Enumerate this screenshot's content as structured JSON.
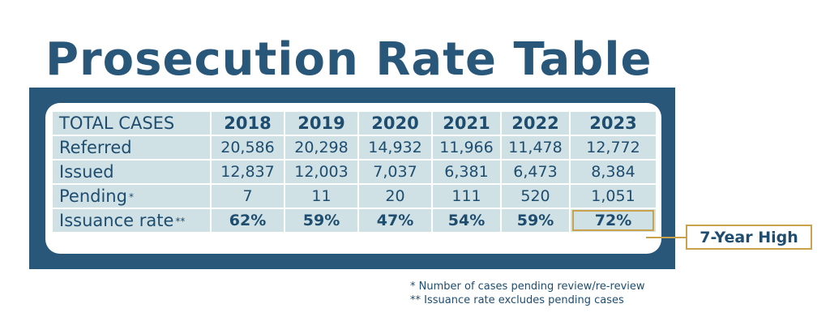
{
  "chart_data": {
    "type": "table",
    "title": "Prosecution Rate Table",
    "columns": [
      "TOTAL CASES",
      "2018",
      "2019",
      "2020",
      "2021",
      "2022",
      "2023"
    ],
    "rows": [
      {
        "label": "Referred",
        "marker": "",
        "values": [
          "20,586",
          "20,298",
          "14,932",
          "11,966",
          "11,478",
          "12,772"
        ]
      },
      {
        "label": "Issued",
        "marker": "",
        "values": [
          "12,837",
          "12,003",
          "7,037",
          "6,381",
          "6,473",
          "8,384"
        ]
      },
      {
        "label": "Pending",
        "marker": "*",
        "values": [
          "7",
          "11",
          "20",
          "111",
          "520",
          "1,051"
        ]
      },
      {
        "label": "Issuance rate",
        "marker": "**",
        "values": [
          "62%",
          "59%",
          "47%",
          "54%",
          "59%",
          "72%"
        ]
      }
    ],
    "callout": "7-Year High",
    "footnotes": [
      "* Number of cases pending review/re-review",
      "** Issuance rate excludes pending cases"
    ],
    "colors": {
      "title": "#28577a",
      "frame": "#28577a",
      "cell": "#cfe1e4",
      "text": "#1e4d70",
      "highlight": "#c9a24a"
    }
  }
}
